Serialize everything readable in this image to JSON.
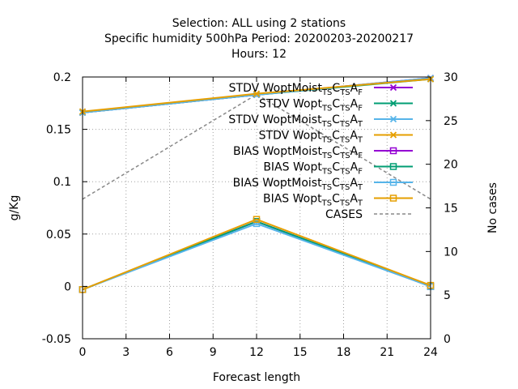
{
  "title_lines": [
    "Selection: ALL using     2 stations",
    "Specific humidity 500hPa   Period: 20200203-20200217",
    "Hours:  12"
  ],
  "chart_data": {
    "type": "line",
    "xlabel": "Forecast length",
    "ylabel": "g/Kg",
    "y2label": "No cases",
    "x": [
      0,
      12,
      24
    ],
    "xticks": [
      "0",
      "3",
      "6",
      "9",
      "12",
      "15",
      "18",
      "21",
      "24"
    ],
    "xlim": [
      0,
      24
    ],
    "ylim": [
      -0.05,
      0.2
    ],
    "yticks": [
      "-0.05",
      "0",
      "0.05",
      "0.1",
      "0.15",
      "0.2"
    ],
    "y2lim": [
      0,
      30
    ],
    "y2ticks": [
      "0",
      "5",
      "10",
      "15",
      "20",
      "25",
      "30"
    ],
    "grid": true,
    "legend_position": "top-right",
    "series": [
      {
        "name": "STDV WoptMoist",
        "sub1": "TS",
        "mid": "C",
        "sub2": "TS",
        "tail": "A",
        "sub3": "F",
        "color": "#9400d3",
        "marker": "x",
        "axis": "y1",
        "values": [
          0.166,
          0.183,
          0.199
        ]
      },
      {
        "name": "STDV Wopt",
        "sub1": "TS",
        "mid": "C",
        "sub2": "TS",
        "tail": "A",
        "sub3": "F",
        "color": "#009e73",
        "marker": "x",
        "axis": "y1",
        "values": [
          0.166,
          0.183,
          0.198
        ]
      },
      {
        "name": "STDV WoptMoist",
        "sub1": "TS",
        "mid": "C",
        "sub2": "TS",
        "tail": "A",
        "sub3": "T",
        "color": "#56b4e9",
        "marker": "x",
        "axis": "y1",
        "values": [
          0.166,
          0.183,
          0.199
        ]
      },
      {
        "name": "STDV Wopt",
        "sub1": "TS",
        "mid": "C",
        "sub2": "TS",
        "tail": "A",
        "sub3": "T",
        "color": "#e69f00",
        "marker": "x",
        "axis": "y1",
        "values": [
          0.167,
          0.184,
          0.198
        ]
      },
      {
        "name": "BIAS WoptMoist",
        "sub1": "TS",
        "mid": "C",
        "sub2": "TS",
        "tail": "A",
        "sub3": "F",
        "color": "#9400d3",
        "marker": "square",
        "axis": "y1",
        "values": [
          -0.003,
          0.062,
          0.0
        ]
      },
      {
        "name": "BIAS Wopt",
        "sub1": "TS",
        "mid": "C",
        "sub2": "TS",
        "tail": "A",
        "sub3": "F",
        "color": "#009e73",
        "marker": "square",
        "axis": "y1",
        "values": [
          -0.003,
          0.062,
          0.0
        ]
      },
      {
        "name": "BIAS WoptMoist",
        "sub1": "TS",
        "mid": "C",
        "sub2": "TS",
        "tail": "A",
        "sub3": "T",
        "color": "#56b4e9",
        "marker": "square",
        "axis": "y1",
        "values": [
          -0.003,
          0.06,
          0.0
        ]
      },
      {
        "name": "BIAS Wopt",
        "sub1": "TS",
        "mid": "C",
        "sub2": "TS",
        "tail": "A",
        "sub3": "T",
        "color": "#e69f00",
        "marker": "square",
        "axis": "y1",
        "values": [
          -0.003,
          0.064,
          0.001
        ]
      },
      {
        "name": "CASES",
        "sub1": "",
        "mid": "",
        "sub2": "",
        "tail": "",
        "sub3": "",
        "color": "#888888",
        "marker": "none",
        "dashed": true,
        "axis": "y2",
        "values": [
          16,
          28,
          16
        ]
      }
    ]
  }
}
